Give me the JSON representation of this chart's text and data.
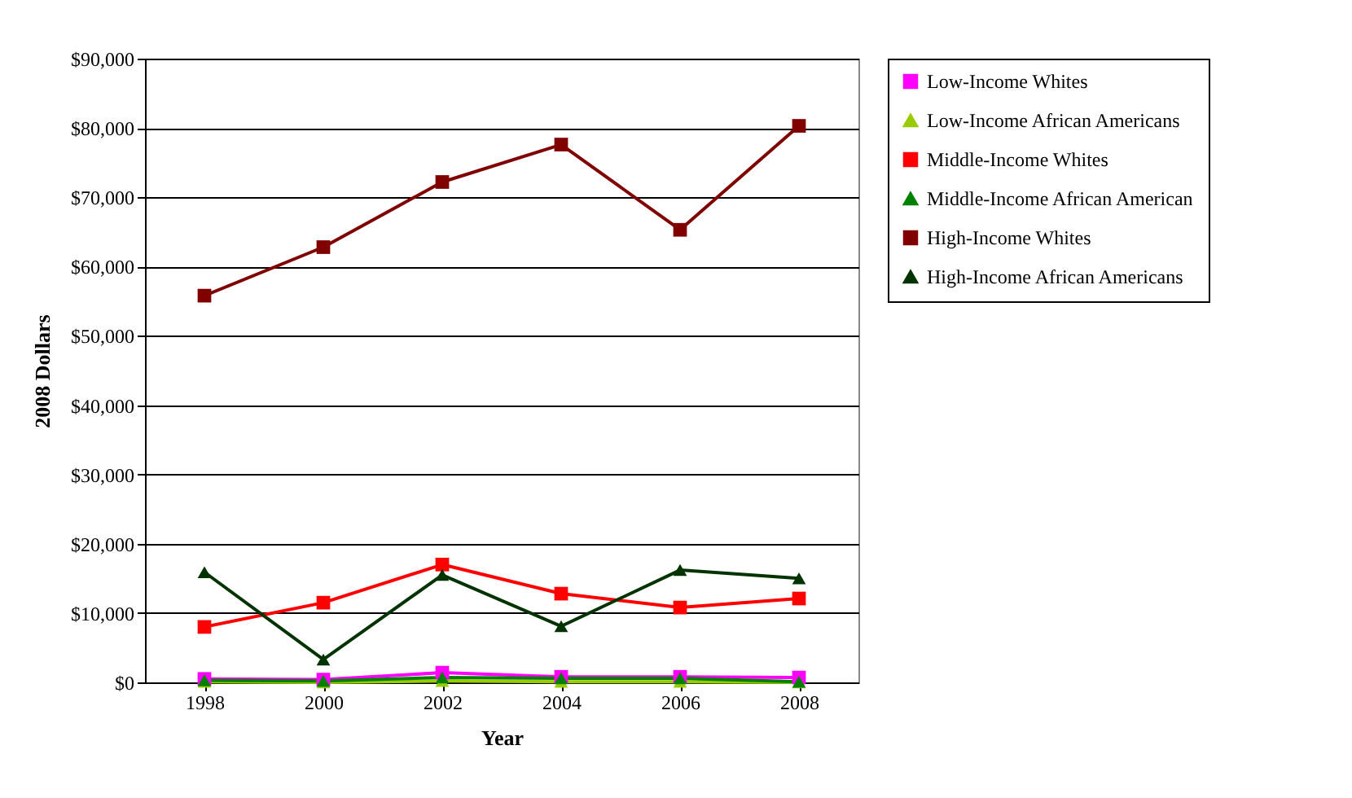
{
  "chart_data": {
    "type": "line",
    "xlabel": "Year",
    "ylabel": "2008 Dollars",
    "categories": [
      "1998",
      "2000",
      "2002",
      "2004",
      "2006",
      "2008"
    ],
    "series": [
      {
        "name": "Low-Income Whites",
        "color": "#ff00ff",
        "marker": "square",
        "values": [
          500,
          400,
          1400,
          800,
          800,
          700
        ]
      },
      {
        "name": "Low-Income African Americans",
        "color": "#99cc00",
        "marker": "triangle",
        "values": [
          100,
          0,
          200,
          100,
          100,
          0
        ]
      },
      {
        "name": "Middle-Income Whites",
        "color": "#ff0000",
        "marker": "square",
        "values": [
          8000,
          11500,
          17000,
          12800,
          10800,
          12100
        ]
      },
      {
        "name": "Middle-Income African American",
        "color": "#008000",
        "marker": "triangle",
        "values": [
          300,
          200,
          700,
          600,
          600,
          100
        ]
      },
      {
        "name": "High-Income Whites",
        "color": "#800000",
        "marker": "square",
        "values": [
          55800,
          62800,
          72200,
          77600,
          65300,
          80300
        ]
      },
      {
        "name": "High-Income African Americans",
        "color": "#003300",
        "marker": "triangle",
        "values": [
          15900,
          3300,
          15500,
          8100,
          16200,
          15000
        ]
      }
    ],
    "ylim": [
      0,
      90000
    ],
    "yticks": [
      {
        "value": 0,
        "label": "$0"
      },
      {
        "value": 10000,
        "label": "$10,000"
      },
      {
        "value": 20000,
        "label": "$20,000"
      },
      {
        "value": 30000,
        "label": "$30,000"
      },
      {
        "value": 40000,
        "label": "$40,000"
      },
      {
        "value": 50000,
        "label": "$50,000"
      },
      {
        "value": 60000,
        "label": "$60,000"
      },
      {
        "value": 70000,
        "label": "$70,000"
      },
      {
        "value": 80000,
        "label": "$80,000"
      },
      {
        "value": 90000,
        "label": "$90,000"
      }
    ],
    "grid": "y",
    "legend": "right",
    "line_style": "solid"
  }
}
